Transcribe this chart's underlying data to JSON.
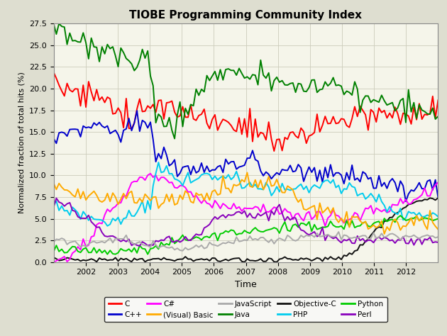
{
  "title": "TIOBE Programming Community Index",
  "xlabel": "Time",
  "ylabel": "Normalized fraction of total hits (%)",
  "ylim": [
    0.0,
    27.5
  ],
  "yticks": [
    0.0,
    2.5,
    5.0,
    7.5,
    10.0,
    12.5,
    15.0,
    17.5,
    20.0,
    22.5,
    25.0,
    27.5
  ],
  "background_color": "#deded0",
  "plot_bg_color": "#f5f5ea",
  "grid_color": "#ccccbb",
  "series": {
    "C": {
      "color": "#ff0000"
    },
    "Java": {
      "color": "#008000"
    },
    "C++": {
      "color": "#0000cc"
    },
    "Objective-C": {
      "color": "#111111"
    },
    "C#": {
      "color": "#ff00ff"
    },
    "PHP": {
      "color": "#00ccee"
    },
    "Python": {
      "color": "#00cc00"
    },
    "(Visual) Basic": {
      "color": "#ffaa00"
    },
    "Perl": {
      "color": "#8800bb"
    },
    "JavaScript": {
      "color": "#aaaaaa"
    }
  },
  "legend_order": [
    "C",
    "C++",
    "C#",
    "(Visual) Basic",
    "JavaScript",
    "Java",
    "Objective-C",
    "PHP",
    "Python",
    "Perl"
  ],
  "figsize": [
    6.3,
    4.74
  ],
  "dpi": 100
}
